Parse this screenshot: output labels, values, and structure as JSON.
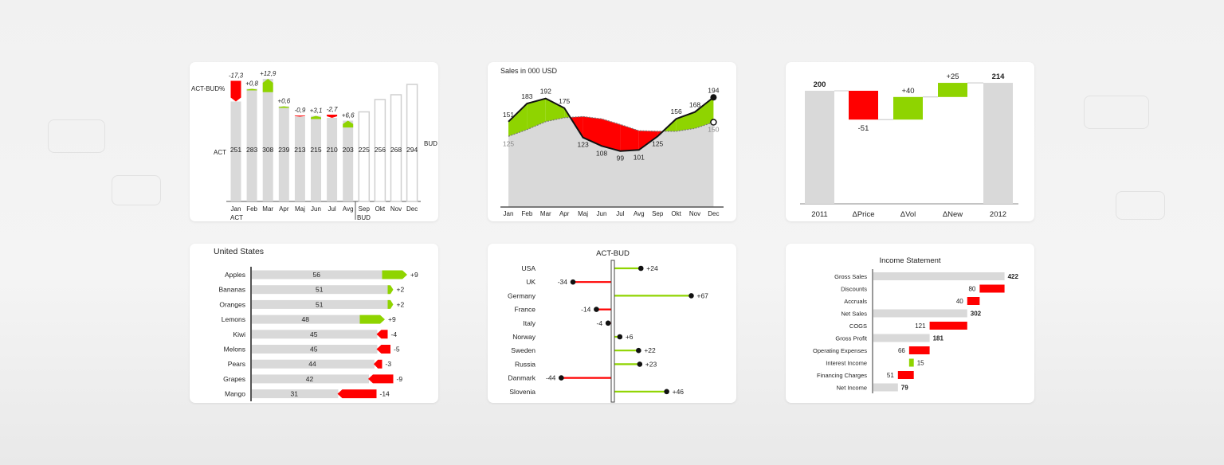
{
  "colors": {
    "actual": "#d9d9d9",
    "positive": "#8fd400",
    "negative": "#ff0000",
    "axis": "#555555",
    "text": "#222222"
  },
  "chart_data": [
    {
      "type": "bar",
      "title": "",
      "categories": [
        "Jan",
        "Feb",
        "Mar",
        "Apr",
        "Maj",
        "Jun",
        "Jul",
        "Avg",
        "Sep",
        "Okt",
        "Nov",
        "Dec"
      ],
      "values": [
        251,
        283,
        308,
        239,
        213,
        215,
        210,
        203,
        225,
        256,
        268,
        294
      ],
      "act_label": "ACT",
      "bud_label": "BUD",
      "variance_label": "ACT-BUD%",
      "variance_pct": [
        "-17,3",
        "+0,8",
        "+12,9",
        "+0,6",
        "-0,9",
        "+3,1",
        "-2,7",
        "+6,6"
      ]
    },
    {
      "type": "area",
      "title": "Sales in 000 USD",
      "categories": [
        "Jan",
        "Feb",
        "Mar",
        "Apr",
        "Maj",
        "Jun",
        "Jul",
        "Avg",
        "Sep",
        "Okt",
        "Nov",
        "Dec"
      ],
      "series": [
        {
          "name": "",
          "role": "actual",
          "values": [
            151,
            183,
            192,
            175,
            123,
            108,
            99,
            101,
            125,
            156,
            168,
            194
          ]
        },
        {
          "name": "",
          "role": "budget",
          "values": [
            125,
            137,
            151,
            158,
            160,
            156,
            146,
            135,
            134,
            134,
            139,
            150
          ]
        }
      ]
    },
    {
      "type": "bar",
      "subtype": "waterfall",
      "title": "",
      "categories": [
        "2011",
        "ΔPrice",
        "ΔVol",
        "ΔNew",
        "2012"
      ],
      "values": [
        "200",
        "-51",
        "+40",
        "+25",
        "214"
      ]
    },
    {
      "type": "bar",
      "orientation": "horizontal",
      "title": "United States",
      "categories": [
        "Apples",
        "Bananas",
        "Oranges",
        "Lemons",
        "Kiwi",
        "Melons",
        "Pears",
        "Grapes",
        "Mango"
      ],
      "values": [
        56,
        51,
        51,
        48,
        45,
        45,
        44,
        42,
        31
      ],
      "deltas": [
        "+9",
        "+2",
        "+2",
        "+9",
        "-4",
        "-5",
        "-3",
        "-9",
        "-14"
      ]
    },
    {
      "type": "bar",
      "subtype": "lollipop",
      "title": "ACT-BUD",
      "categories": [
        "USA",
        "UK",
        "Germany",
        "France",
        "Italy",
        "Norway",
        "Sweden",
        "Russia",
        "Danmark",
        "Slovenia"
      ],
      "values": [
        "+24",
        "-34",
        "+67",
        "-14",
        "-4",
        "+6",
        "+22",
        "+23",
        "-44",
        "+46"
      ]
    },
    {
      "type": "bar",
      "subtype": "horizontal-waterfall",
      "title": "Income Statement",
      "categories": [
        "Gross Sales",
        "Discounts",
        "Accruals",
        "Net Sales",
        "COGS",
        "Gross Profit",
        "Operating Expenses",
        "Interest Income",
        "Financing Charges",
        "Net Income"
      ],
      "values": [
        422,
        80,
        40,
        302,
        121,
        181,
        66,
        15,
        51,
        79
      ],
      "kinds": [
        "total",
        "negative",
        "negative",
        "total",
        "negative",
        "total",
        "negative",
        "positive",
        "negative",
        "total"
      ]
    }
  ]
}
